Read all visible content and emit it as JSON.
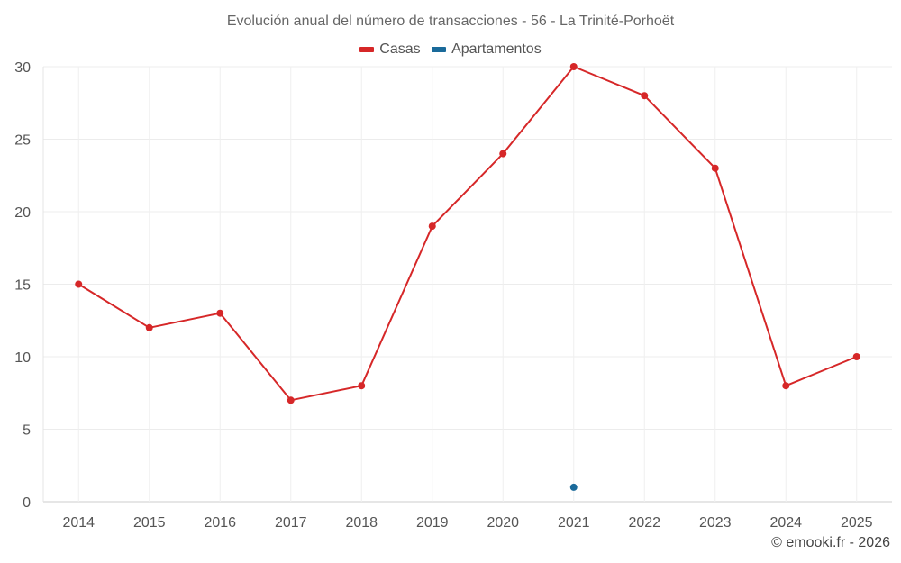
{
  "chart_data": {
    "type": "line",
    "title": "Evolución anual del número de transacciones - 56 - La Trinité-Porhoët",
    "xlabel": "",
    "ylabel": "",
    "categories": [
      "2014",
      "2015",
      "2016",
      "2017",
      "2018",
      "2019",
      "2020",
      "2021",
      "2022",
      "2023",
      "2024",
      "2025"
    ],
    "ylim": [
      0,
      30
    ],
    "yticks": [
      0,
      5,
      10,
      15,
      20,
      25,
      30
    ],
    "grid": true,
    "legend_position": "top-center",
    "series": [
      {
        "name": "Casas",
        "color": "#d62728",
        "values": [
          15,
          12,
          13,
          7,
          8,
          19,
          24,
          30,
          28,
          23,
          8,
          10
        ]
      },
      {
        "name": "Apartamentos",
        "color": "#1a6a9a",
        "values": [
          null,
          null,
          null,
          null,
          null,
          null,
          null,
          1,
          null,
          null,
          null,
          null
        ]
      }
    ]
  },
  "credit": "© emooki.fr - 2026"
}
